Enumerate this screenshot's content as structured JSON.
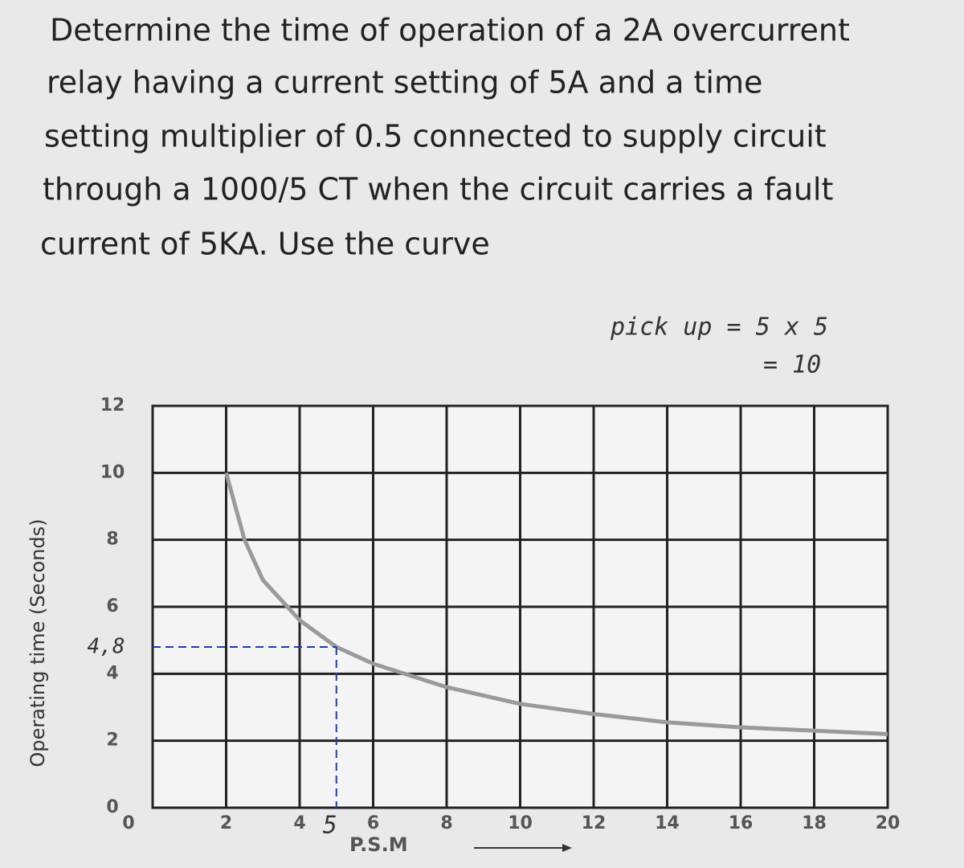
{
  "question": [
    "Determine the time of operation of a 2A overcurrent",
    "relay having a current setting of 5A and a time",
    "setting multiplier of 0.5 connected to supply circuit",
    "through a 1000/5 CT when the circuit carries a fault",
    "current of 5KA. Use the curve"
  ],
  "annotations": [
    "pick up = 5 x 5",
    "= 10"
  ],
  "chart_data": {
    "type": "line",
    "xlabel": "P.S.M",
    "ylabel": "Operating time (Seconds)",
    "x": [
      2,
      2.5,
      3,
      4,
      5,
      6,
      8,
      10,
      12,
      14,
      16,
      18,
      20
    ],
    "values": [
      10,
      8,
      6.8,
      5.6,
      4.8,
      4.3,
      3.6,
      3.1,
      2.8,
      2.55,
      2.4,
      2.3,
      2.2
    ],
    "color": "#9a9a9a",
    "xlim": [
      0,
      20
    ],
    "xticks": [
      0,
      2,
      4,
      6,
      8,
      10,
      12,
      14,
      16,
      18,
      20
    ],
    "ylim": [
      0,
      12
    ],
    "yticks": [
      0,
      2,
      4,
      6,
      8,
      10,
      12
    ],
    "grid": true,
    "x_marker": {
      "value": 5,
      "label": "5"
    },
    "y_marker": {
      "value": 4.8,
      "label": "4,8"
    }
  }
}
